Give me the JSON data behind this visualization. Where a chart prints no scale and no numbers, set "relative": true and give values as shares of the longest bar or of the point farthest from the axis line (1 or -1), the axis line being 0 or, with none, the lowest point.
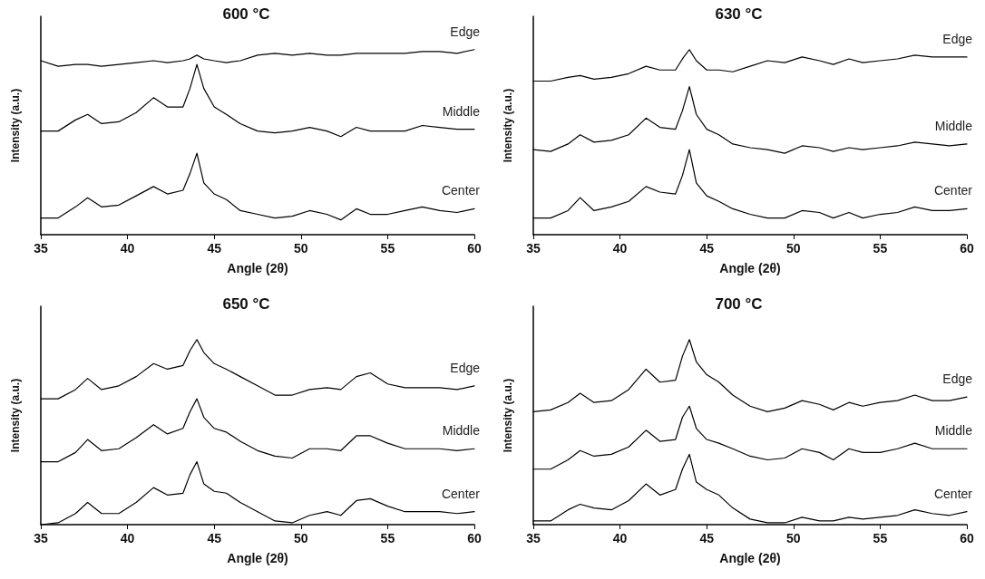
{
  "chart_data": [
    {
      "type": "line",
      "title": "600 °C",
      "xlabel": "Angle (2θ)",
      "ylabel": "Intensity (a.u.)",
      "relative": true,
      "xlim": [
        35,
        60
      ],
      "xticks": [
        35,
        40,
        45,
        50,
        55,
        60
      ],
      "tick_labels": "x",
      "grid": false,
      "legend": false,
      "marker": "none",
      "line_style": "solid",
      "x": [
        35,
        36,
        37,
        37.7,
        38.5,
        39.5,
        40.5,
        41.5,
        42.3,
        43.2,
        43.6,
        44,
        44.4,
        45,
        45.7,
        46.5,
        47.5,
        48.5,
        49.5,
        50.5,
        51.5,
        52.3,
        53.2,
        54,
        55,
        56,
        57,
        58,
        59,
        60
      ],
      "series": [
        {
          "name": "Edge",
          "color": "#000000",
          "values": [
            0.94,
            0.91,
            0.92,
            0.92,
            0.91,
            0.92,
            0.93,
            0.94,
            0.93,
            0.94,
            0.95,
            0.97,
            0.95,
            0.94,
            0.93,
            0.94,
            0.97,
            0.98,
            0.97,
            0.98,
            0.97,
            0.97,
            0.98,
            0.98,
            0.98,
            0.98,
            0.99,
            0.99,
            0.98,
            1
          ]
        },
        {
          "name": "Middle",
          "color": "#000000",
          "values": [
            0.56,
            0.56,
            0.62,
            0.65,
            0.6,
            0.61,
            0.66,
            0.74,
            0.69,
            0.69,
            0.79,
            0.92,
            0.79,
            0.69,
            0.65,
            0.6,
            0.56,
            0.55,
            0.56,
            0.58,
            0.56,
            0.53,
            0.58,
            0.56,
            0.56,
            0.56,
            0.59,
            0.58,
            0.57,
            0.57
          ]
        },
        {
          "name": "Center",
          "color": "#000000",
          "values": [
            0.09,
            0.09,
            0.15,
            0.2,
            0.15,
            0.16,
            0.21,
            0.26,
            0.22,
            0.24,
            0.33,
            0.44,
            0.28,
            0.22,
            0.19,
            0.13,
            0.11,
            0.09,
            0.1,
            0.13,
            0.11,
            0.08,
            0.14,
            0.11,
            0.11,
            0.13,
            0.15,
            0.13,
            0.12,
            0.14
          ]
        }
      ]
    },
    {
      "type": "line",
      "title": "630 °C",
      "xlabel": "Angle (2θ)",
      "ylabel": "Intensity (a.u.)",
      "relative": true,
      "xlim": [
        35,
        60
      ],
      "xticks": [
        35,
        40,
        45,
        50,
        55,
        60
      ],
      "tick_labels": "x",
      "grid": false,
      "legend": false,
      "marker": "none",
      "line_style": "solid",
      "x": [
        35,
        36,
        37,
        37.7,
        38.5,
        39.5,
        40.5,
        41.5,
        42.3,
        43.2,
        43.6,
        44,
        44.4,
        45,
        45.7,
        46.5,
        47.5,
        48.5,
        49.5,
        50.5,
        51.5,
        52.3,
        53.2,
        54,
        55,
        56,
        57,
        58,
        59,
        60
      ],
      "series": [
        {
          "name": "Edge",
          "color": "#000000",
          "values": [
            0.83,
            0.83,
            0.85,
            0.86,
            0.84,
            0.85,
            0.87,
            0.91,
            0.89,
            0.89,
            0.95,
            1,
            0.94,
            0.89,
            0.89,
            0.88,
            0.91,
            0.94,
            0.93,
            0.96,
            0.94,
            0.92,
            0.95,
            0.93,
            0.94,
            0.95,
            0.97,
            0.96,
            0.96,
            0.96
          ]
        },
        {
          "name": "Middle",
          "color": "#000000",
          "values": [
            0.46,
            0.45,
            0.49,
            0.54,
            0.5,
            0.51,
            0.54,
            0.63,
            0.58,
            0.57,
            0.67,
            0.8,
            0.65,
            0.57,
            0.54,
            0.49,
            0.47,
            0.46,
            0.44,
            0.48,
            0.47,
            0.45,
            0.47,
            0.46,
            0.47,
            0.48,
            0.5,
            0.49,
            0.48,
            0.49
          ]
        },
        {
          "name": "Center",
          "color": "#000000",
          "values": [
            0.09,
            0.09,
            0.13,
            0.2,
            0.13,
            0.15,
            0.18,
            0.26,
            0.23,
            0.22,
            0.32,
            0.46,
            0.28,
            0.21,
            0.18,
            0.14,
            0.11,
            0.09,
            0.09,
            0.13,
            0.12,
            0.09,
            0.12,
            0.09,
            0.11,
            0.12,
            0.15,
            0.13,
            0.13,
            0.14
          ]
        }
      ]
    },
    {
      "type": "line",
      "title": "650 °C",
      "xlabel": "Angle (2θ)",
      "ylabel": "Intensity (a.u.)",
      "relative": true,
      "xlim": [
        35,
        60
      ],
      "xticks": [
        35,
        40,
        45,
        50,
        55,
        60
      ],
      "tick_labels": "x",
      "grid": false,
      "legend": false,
      "marker": "none",
      "line_style": "solid",
      "x": [
        35,
        36,
        37,
        37.7,
        38.5,
        39.5,
        40.5,
        41.5,
        42.3,
        43.2,
        43.6,
        44,
        44.4,
        45,
        45.7,
        46.5,
        47.5,
        48.5,
        49.5,
        50.5,
        51.5,
        52.3,
        53.2,
        54,
        55,
        56,
        57,
        58,
        59,
        60
      ],
      "series": [
        {
          "name": "Edge",
          "color": "#000000",
          "values": [
            0.68,
            0.68,
            0.73,
            0.79,
            0.73,
            0.75,
            0.8,
            0.87,
            0.84,
            0.86,
            0.94,
            1,
            0.93,
            0.87,
            0.84,
            0.8,
            0.75,
            0.7,
            0.7,
            0.73,
            0.74,
            0.73,
            0.8,
            0.82,
            0.76,
            0.74,
            0.74,
            0.74,
            0.73,
            0.75
          ]
        },
        {
          "name": "Middle",
          "color": "#000000",
          "values": [
            0.34,
            0.34,
            0.39,
            0.46,
            0.4,
            0.41,
            0.47,
            0.54,
            0.49,
            0.52,
            0.61,
            0.68,
            0.58,
            0.52,
            0.5,
            0.45,
            0.4,
            0.37,
            0.36,
            0.41,
            0.41,
            0.4,
            0.48,
            0.48,
            0.44,
            0.41,
            0.41,
            0.41,
            0.4,
            0.41
          ]
        },
        {
          "name": "Center",
          "color": "#000000",
          "values": [
            0,
            0.01,
            0.06,
            0.12,
            0.06,
            0.06,
            0.12,
            0.2,
            0.16,
            0.17,
            0.27,
            0.34,
            0.22,
            0.18,
            0.17,
            0.12,
            0.07,
            0.02,
            0.01,
            0.05,
            0.07,
            0.05,
            0.13,
            0.14,
            0.1,
            0.07,
            0.07,
            0.07,
            0.06,
            0.07
          ]
        }
      ]
    },
    {
      "type": "line",
      "title": "700 °C",
      "xlabel": "Angle (2θ)",
      "ylabel": "Intensity (a.u.)",
      "relative": true,
      "xlim": [
        35,
        60
      ],
      "xticks": [
        35,
        40,
        45,
        50,
        55,
        60
      ],
      "tick_labels": "x",
      "grid": false,
      "legend": false,
      "marker": "none",
      "line_style": "solid",
      "x": [
        35,
        36,
        37,
        37.7,
        38.5,
        39.5,
        40.5,
        41.5,
        42.3,
        43.2,
        43.6,
        44,
        44.4,
        45,
        45.7,
        46.5,
        47.5,
        48.5,
        49.5,
        50.5,
        51.5,
        52.3,
        53.2,
        54,
        55,
        56,
        57,
        58,
        59,
        60
      ],
      "series": [
        {
          "name": "Edge",
          "color": "#000000",
          "values": [
            0.61,
            0.62,
            0.66,
            0.71,
            0.66,
            0.67,
            0.73,
            0.84,
            0.77,
            0.78,
            0.91,
            1,
            0.88,
            0.81,
            0.77,
            0.7,
            0.64,
            0.61,
            0.63,
            0.67,
            0.65,
            0.62,
            0.66,
            0.64,
            0.66,
            0.67,
            0.7,
            0.67,
            0.67,
            0.69
          ]
        },
        {
          "name": "Middle",
          "color": "#000000",
          "values": [
            0.3,
            0.3,
            0.35,
            0.4,
            0.37,
            0.38,
            0.42,
            0.51,
            0.45,
            0.46,
            0.58,
            0.64,
            0.52,
            0.46,
            0.44,
            0.41,
            0.37,
            0.35,
            0.36,
            0.41,
            0.39,
            0.35,
            0.41,
            0.39,
            0.39,
            0.41,
            0.44,
            0.41,
            0.41,
            0.41
          ]
        },
        {
          "name": "Center",
          "color": "#000000",
          "values": [
            0.02,
            0.02,
            0.08,
            0.11,
            0.09,
            0.08,
            0.13,
            0.22,
            0.16,
            0.19,
            0.3,
            0.38,
            0.23,
            0.19,
            0.16,
            0.09,
            0.03,
            0.01,
            0.01,
            0.04,
            0.02,
            0.02,
            0.04,
            0.03,
            0.04,
            0.05,
            0.08,
            0.06,
            0.05,
            0.07
          ]
        }
      ]
    }
  ]
}
